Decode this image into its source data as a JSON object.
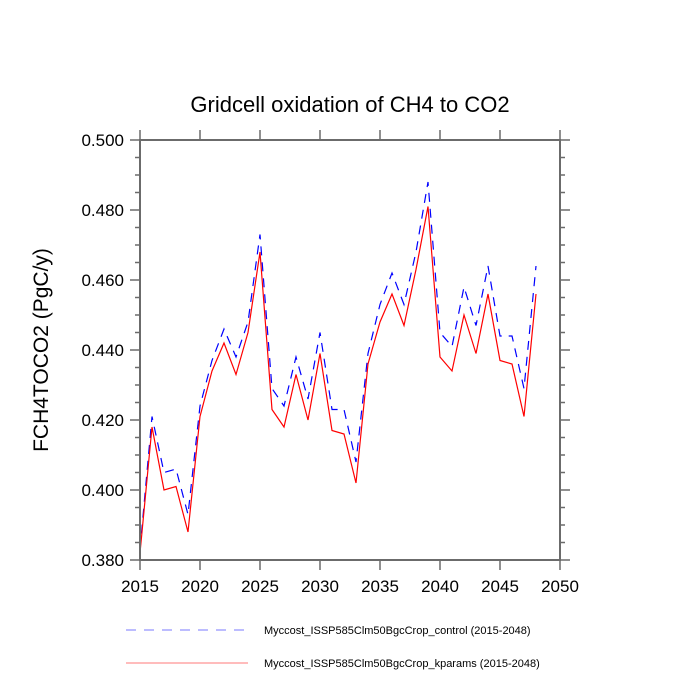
{
  "chart_data": {
    "type": "line",
    "title": "Gridcell oxidation of CH4 to CO2",
    "xlabel": "",
    "ylabel": "FCH4TOCO2  (PgC/y)",
    "xlim": [
      2015,
      2050
    ],
    "ylim": [
      0.38,
      0.5
    ],
    "xticks": [
      2015,
      2020,
      2025,
      2030,
      2035,
      2040,
      2045,
      2050
    ],
    "xtick_labels": [
      "2015",
      "2020",
      "2025",
      "2030",
      "2035",
      "2040",
      "2045",
      "2050"
    ],
    "yticks": [
      0.38,
      0.4,
      0.42,
      0.44,
      0.46,
      0.48,
      0.5
    ],
    "ytick_labels": [
      "0.380",
      "0.400",
      "0.420",
      "0.440",
      "0.460",
      "0.480",
      "0.500"
    ],
    "yminor_step": 0.005,
    "grid": false,
    "legend_position": "bottom",
    "x": [
      2015,
      2016,
      2017,
      2018,
      2019,
      2020,
      2021,
      2022,
      2023,
      2024,
      2025,
      2026,
      2027,
      2028,
      2029,
      2030,
      2031,
      2032,
      2033,
      2034,
      2035,
      2036,
      2037,
      2038,
      2039,
      2040,
      2041,
      2042,
      2043,
      2044,
      2045,
      2046,
      2047,
      2048
    ],
    "series": [
      {
        "name": "Myccost_ISSP585Clm50BgcCrop_control (2015-2048)",
        "color": "#0000ff",
        "style": "dashed",
        "values": [
          0.383,
          0.421,
          0.405,
          0.406,
          0.393,
          0.424,
          0.437,
          0.446,
          0.438,
          0.448,
          0.473,
          0.429,
          0.424,
          0.438,
          0.426,
          0.445,
          0.423,
          0.423,
          0.408,
          0.439,
          0.453,
          0.462,
          0.453,
          0.468,
          0.488,
          0.445,
          0.441,
          0.458,
          0.447,
          0.464,
          0.444,
          0.444,
          0.429,
          0.464
        ]
      },
      {
        "name": "Myccost_ISSP585Clm50BgcCrop_kparams (2015-2048)",
        "color": "#ff0000",
        "style": "solid",
        "values": [
          0.382,
          0.418,
          0.4,
          0.401,
          0.388,
          0.421,
          0.434,
          0.442,
          0.433,
          0.445,
          0.468,
          0.423,
          0.418,
          0.433,
          0.42,
          0.439,
          0.417,
          0.416,
          0.402,
          0.436,
          0.448,
          0.456,
          0.447,
          0.463,
          0.481,
          0.438,
          0.434,
          0.45,
          0.439,
          0.456,
          0.437,
          0.436,
          0.421,
          0.456
        ]
      }
    ]
  }
}
